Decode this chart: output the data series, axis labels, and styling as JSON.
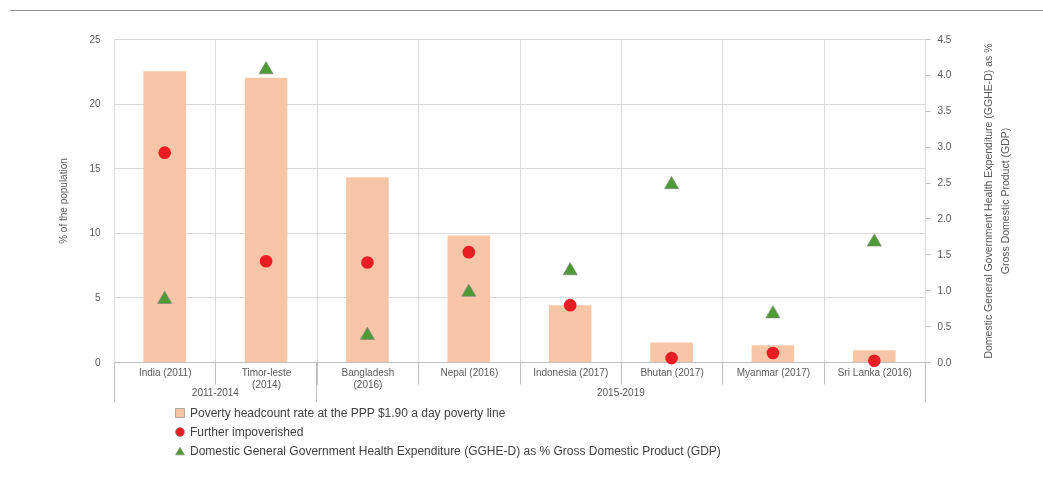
{
  "chart_data": {
    "type": "bar",
    "categories": [
      "India (2011)",
      "Timor-leste (2014)",
      "Bangladesh (2016)",
      "Nepal (2016)",
      "Indonesia (2017)",
      "Bhutan (2017)",
      "Myanmar (2017)",
      "Sri Lanka (2016)"
    ],
    "ylabel": "% of the population",
    "y2label": "Domestic General Government Health Expenditure (GGHE-D) as % Gross Domestic Product (GDP)",
    "ylim": [
      0,
      25
    ],
    "yticks": [
      0,
      5,
      10,
      15,
      20,
      25
    ],
    "y2lim": [
      0,
      4.5
    ],
    "y2ticks": [
      {
        "value": 0,
        "label": "0.0"
      },
      {
        "value": 0.5,
        "label": "0.5"
      },
      {
        "value": 1,
        "label": "1.0"
      },
      {
        "value": 1.5,
        "label": "1.5"
      },
      {
        "value": 2,
        "label": "2.0"
      },
      {
        "value": 2.5,
        "label": "2.5"
      },
      {
        "value": 3,
        "label": "3.0"
      },
      {
        "value": 3.5,
        "label": "3.5"
      },
      {
        "value": 4,
        "label": "4.0"
      },
      {
        "value": 4.5,
        "label": "4.5"
      }
    ],
    "series": [
      {
        "name": "Poverty headcount rate at the PPP $1.90 a day poverty line",
        "color": "#f8c6a6",
        "values": [
          22.5,
          22.0,
          14.3,
          9.8,
          4.4,
          1.5,
          1.3,
          0.9
        ]
      },
      {
        "name": "Further impoverished",
        "type": "scatter",
        "marker": "circle",
        "color": "#ec1c24",
        "values": [
          16.2,
          7.8,
          7.7,
          8.5,
          4.4,
          0.3,
          0.7,
          0.1
        ]
      },
      {
        "name": "Domestic General Government Health Expenditure (GGHE-D) as % Gross Domestic Product (GDP)",
        "type": "scatter",
        "marker": "triangle",
        "axis": "y2",
        "color": "#4e9b36",
        "values": [
          0.9,
          4.1,
          0.4,
          1.0,
          1.3,
          2.5,
          0.7,
          1.7
        ]
      }
    ],
    "annotations": [
      "2011-2014",
      "2015-2019"
    ],
    "grid": true,
    "legend": "bottom"
  }
}
